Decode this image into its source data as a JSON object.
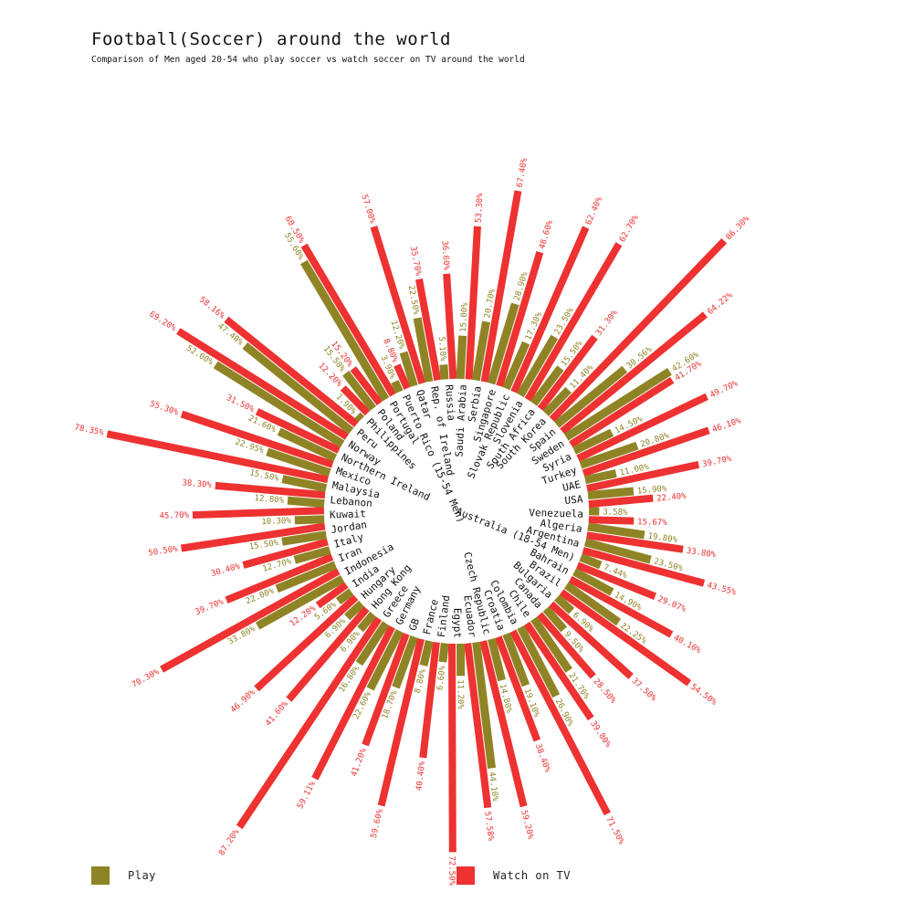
{
  "header": {
    "title": "Football(Soccer) around the world",
    "subtitle": "Comparison of Men aged 20-54 who play soccer vs watch soccer on TV around the world"
  },
  "legend": {
    "play_label": "Play",
    "watch_label": "Watch on TV"
  },
  "colors": {
    "play": "#8f8425",
    "watch": "#ee3131"
  },
  "chart_data": {
    "type": "radial-bar",
    "series": [
      {
        "name": "Play",
        "key": "play"
      },
      {
        "name": "Watch on TV",
        "key": "watch"
      }
    ],
    "countries": [
      {
        "name": "Venezuela",
        "play": 3.58,
        "watch": 15.67,
        "play_label": "3.58%",
        "watch_label": "15.67%"
      },
      {
        "name": "Algeria",
        "play": 19.8,
        "watch": 33.8,
        "play_label": "19.80%",
        "watch_label": "33.80%"
      },
      {
        "name": "Argentina",
        "play": 23.5,
        "watch": 43.55,
        "play_label": "23.50%",
        "watch_label": "43.55%"
      },
      {
        "name": "Australia (18-54 Men)",
        "play": 7.44,
        "watch": 29.07,
        "play_label": "7.44%",
        "watch_label": "29.07%"
      },
      {
        "name": "Bahrain",
        "play": 14.9,
        "watch": 40.1,
        "play_label": "14.90%",
        "watch_label": "40.10%"
      },
      {
        "name": "Brazil",
        "play": 22.25,
        "watch": 54.5,
        "play_label": "22.25%",
        "watch_label": "54.50%"
      },
      {
        "name": "Bulgaria",
        "play": 6.9,
        "watch": 37.5,
        "play_label": "6.90%",
        "watch_label": "37.50%"
      },
      {
        "name": "Canada",
        "play": 9.5,
        "watch": 28.5,
        "play_label": "9.50%",
        "watch_label": "28.50%"
      },
      {
        "name": "Chile",
        "play": 21.7,
        "watch": 39.8,
        "play_label": "21.70%",
        "watch_label": "39.80%"
      },
      {
        "name": "Colombia",
        "play": 26.9,
        "watch": 71.5,
        "play_label": "26.90%",
        "watch_label": "71.50%"
      },
      {
        "name": "Croatia",
        "play": 19.1,
        "watch": 38.4,
        "play_label": "19.10%",
        "watch_label": "38.40%"
      },
      {
        "name": "Czech Republic",
        "play": 14.8,
        "watch": 59.2,
        "play_label": "14.80%",
        "watch_label": "59.20%"
      },
      {
        "name": "Ecuador",
        "play": 44.1,
        "watch": 57.58,
        "play_label": "44.10%",
        "watch_label": "57.58%"
      },
      {
        "name": "Egypt",
        "play": 11.2,
        "watch": 72.5,
        "play_label": "11.20%",
        "watch_label": "72.50%"
      },
      {
        "name": "Finland",
        "play": 6.6,
        "watch": 40.4,
        "play_label": "6.60%",
        "watch_label": "40.40%"
      },
      {
        "name": "France",
        "play": 8.8,
        "watch": 59.6,
        "play_label": "8.80%",
        "watch_label": "59.60%"
      },
      {
        "name": "GB",
        "play": 18.7,
        "watch": 41.2,
        "play_label": "18.70%",
        "watch_label": "41.20%"
      },
      {
        "name": "Germany",
        "play": 22.6,
        "watch": 59.11,
        "play_label": "22.60%",
        "watch_label": "59.11%"
      },
      {
        "name": "Greece",
        "play": 16.8,
        "watch": 87.2,
        "play_label": "16.80%",
        "watch_label": "87.20%"
      },
      {
        "name": "Hong Kong",
        "play": 6.9,
        "watch": 41.6,
        "play_label": "6.90%",
        "watch_label": "41.60%"
      },
      {
        "name": "Hungary",
        "play": 6.9,
        "watch": 46.9,
        "play_label": "6.90%",
        "watch_label": "46.90%"
      },
      {
        "name": "India",
        "play": 5.6,
        "watch": 12.2,
        "play_label": "5.60%",
        "watch_label": "12.20%"
      },
      {
        "name": "Indonesia",
        "play": 33.8,
        "watch": 70.3,
        "play_label": "33.80%",
        "watch_label": "70.30%"
      },
      {
        "name": "Iran",
        "play": 22.0,
        "watch": 39.7,
        "play_label": "22.00%",
        "watch_label": "39.70%"
      },
      {
        "name": "Italy",
        "play": 12.7,
        "watch": 30.4,
        "play_label": "12.70%",
        "watch_label": "30.40%"
      },
      {
        "name": "Jordan",
        "play": 15.5,
        "watch": 50.5,
        "play_label": "15.50%",
        "watch_label": "50.50%"
      },
      {
        "name": "Kuwait",
        "play": 10.3,
        "watch": 45.7,
        "play_label": "10.30%",
        "watch_label": "45.70%"
      },
      {
        "name": "Lebanon",
        "play": 12.8,
        "watch": 38.3,
        "play_label": "12.80%",
        "watch_label": "38.30%"
      },
      {
        "name": "Malaysia",
        "play": 15.5,
        "watch": 78.35,
        "play_label": "15.50%",
        "watch_label": "78.35%"
      },
      {
        "name": "Mexico",
        "play": 22.95,
        "watch": 55.3,
        "play_label": "22.95%",
        "watch_label": "55.30%"
      },
      {
        "name": "Northern Ireland",
        "play": 21.6,
        "watch": 31.5,
        "play_label": "21.60%",
        "watch_label": "31.50%"
      },
      {
        "name": "Norway",
        "play": 52.0,
        "watch": 69.2,
        "play_label": "52.00%",
        "watch_label": "69.20%"
      },
      {
        "name": "Peru",
        "play": 47.4,
        "watch": 58.16,
        "play_label": "47.40%",
        "watch_label": "58.16%"
      },
      {
        "name": "Philippines",
        "play": 1.9,
        "watch": 12.2,
        "play_label": "1.90%",
        "watch_label": "12.20%"
      },
      {
        "name": "Poland",
        "play": 15.5,
        "watch": 15.2,
        "play_label": "15.50%",
        "watch_label": "15.20%"
      },
      {
        "name": "Portugal",
        "play": 55.6,
        "watch": 60.5,
        "play_label": "55.60%",
        "watch_label": "60.50%"
      },
      {
        "name": "Puerto Rico (15-54 Men)",
        "play": 3.9,
        "watch": 8.8,
        "play_label": "3.90%",
        "watch_label": "8.80%"
      },
      {
        "name": "Qatar",
        "play": 12.2,
        "watch": 57.0,
        "play_label": "12.20%",
        "watch_label": "57.00%"
      },
      {
        "name": "Rep. of Ireland",
        "play": 22.5,
        "watch": 35.7,
        "play_label": "22.50%",
        "watch_label": "35.70%"
      },
      {
        "name": "Russia",
        "play": 5.1,
        "watch": 36.6,
        "play_label": "5.10%",
        "watch_label": "36.60%"
      },
      {
        "name": "Saudi Arabia",
        "play": 15.0,
        "watch": 53.3,
        "play_label": "15.00%",
        "watch_label": "53.30%"
      },
      {
        "name": "Serbia",
        "play": 20.7,
        "watch": 67.4,
        "play_label": "20.70%",
        "watch_label": "67.40%"
      },
      {
        "name": "Singapore",
        "play": 28.9,
        "watch": 48.6,
        "play_label": "28.90%",
        "watch_label": "48.60%"
      },
      {
        "name": "Slovak Republic",
        "play": 17.3,
        "watch": 62.4,
        "play_label": "17.30%",
        "watch_label": "62.40%"
      },
      {
        "name": "Slovenia",
        "play": 23.5,
        "watch": 62.7,
        "play_label": "23.50%",
        "watch_label": "62.70%"
      },
      {
        "name": "South Africa",
        "play": 15.5,
        "watch": 31.3,
        "play_label": "15.50%",
        "watch_label": "31.30%"
      },
      {
        "name": "South Korea",
        "play": 11.4,
        "watch": 86.3,
        "play_label": "11.40%",
        "watch_label": "86.30%"
      },
      {
        "name": "Spain",
        "play": 30.56,
        "watch": 64.22,
        "play_label": "30.56%",
        "watch_label": "64.22%"
      },
      {
        "name": "Sweden",
        "play": 42.6,
        "watch": 41.7,
        "play_label": "42.60%",
        "watch_label": "41.70%"
      },
      {
        "name": "Syria",
        "play": 14.5,
        "watch": 49.7,
        "play_label": "14.50%",
        "watch_label": "49.70%"
      },
      {
        "name": "Turkey",
        "play": 20.8,
        "watch": 46.1,
        "play_label": "20.80%",
        "watch_label": "46.10%"
      },
      {
        "name": "UAE",
        "play": 11.0,
        "watch": 39.7,
        "play_label": "11.00%",
        "watch_label": "39.70%"
      },
      {
        "name": "USA",
        "play": 15.9,
        "watch": 22.4,
        "play_label": "15.90%",
        "watch_label": "22.40%"
      }
    ]
  }
}
